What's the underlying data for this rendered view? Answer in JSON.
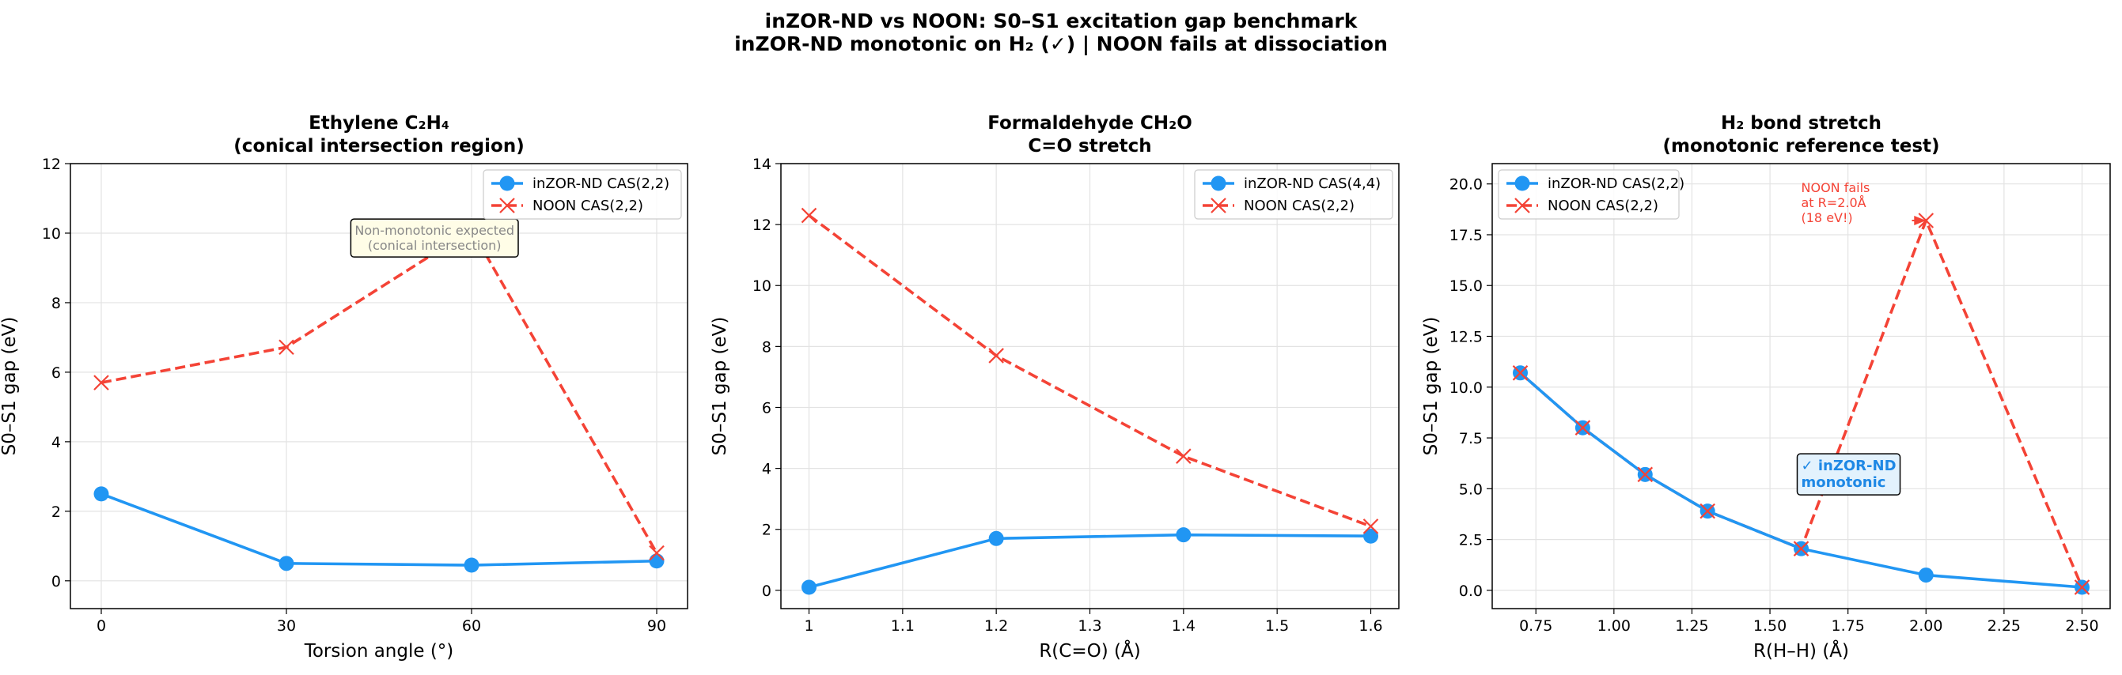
{
  "figure": {
    "suptitle_line1": "inZOR-ND vs NOON: S0–S1 excitation gap benchmark",
    "suptitle_line2": "inZOR-ND monotonic on H₂ (✓) | NOON fails at dissociation"
  },
  "chart_data": [
    {
      "type": "line",
      "title_line1": "Ethylene C₂H₄",
      "title_line2": "(conical intersection region)",
      "xlabel": "Torsion angle (°)",
      "ylabel": "S0–S1 gap (eV)",
      "xlim": [
        -5,
        95
      ],
      "ylim": [
        -0.8,
        12
      ],
      "xticks": [
        0,
        30,
        60,
        90
      ],
      "yticks": [
        0,
        2,
        4,
        6,
        8,
        10,
        12
      ],
      "grid": true,
      "legend": "top-right",
      "series": [
        {
          "name": "inZOR-ND CAS(2,2)",
          "color": "#2196F3",
          "marker": "circle",
          "linestyle": "solid",
          "x": [
            0,
            30,
            60,
            90
          ],
          "y": [
            2.5,
            0.5,
            0.45,
            0.57
          ]
        },
        {
          "name": "NOON CAS(2,2)",
          "color": "#F44336",
          "marker": "x",
          "linestyle": "dashed",
          "x": [
            0,
            30,
            60,
            90
          ],
          "y": [
            5.7,
            6.72,
            10.1,
            0.8
          ]
        }
      ],
      "annotations": [
        {
          "text_line1": "Non-monotonic expected",
          "text_line2": "(conical intersection)",
          "x": 54,
          "y": 9.95,
          "arrow_to": [
            60,
            10.1
          ],
          "box_fill": "#FFFDE7",
          "color": "#888888"
        }
      ]
    },
    {
      "type": "line",
      "title_line1": "Formaldehyde CH₂O",
      "title_line2": "C=O stretch",
      "xlabel": "R(C=O) (Å)",
      "ylabel": "S0–S1 gap (eV)",
      "xlim": [
        0.97,
        1.63
      ],
      "ylim": [
        -0.6,
        14
      ],
      "xticks": [
        1.0,
        1.1,
        1.2,
        1.3,
        1.4,
        1.5,
        1.6
      ],
      "yticks": [
        0,
        2,
        4,
        6,
        8,
        10,
        12,
        14
      ],
      "grid": true,
      "legend": "top-right",
      "series": [
        {
          "name": "inZOR-ND CAS(4,4)",
          "color": "#2196F3",
          "marker": "circle",
          "linestyle": "solid",
          "x": [
            1.0,
            1.2,
            1.4,
            1.6
          ],
          "y": [
            0.1,
            1.7,
            1.82,
            1.78
          ]
        },
        {
          "name": "NOON CAS(2,2)",
          "color": "#F44336",
          "marker": "x",
          "linestyle": "dashed",
          "x": [
            1.0,
            1.2,
            1.4,
            1.6
          ],
          "y": [
            12.3,
            7.7,
            4.4,
            2.1
          ]
        }
      ],
      "annotations": []
    },
    {
      "type": "line",
      "title_line1": "H₂ bond stretch",
      "title_line2": "(monotonic reference test)",
      "xlabel": "R(H–H) (Å)",
      "ylabel": "S0–S1 gap (eV)",
      "xlim": [
        0.61,
        2.59
      ],
      "ylim": [
        -0.9,
        21
      ],
      "xticks": [
        0.75,
        1.0,
        1.25,
        1.5,
        1.75,
        2.0,
        2.25,
        2.5
      ],
      "xticklabels": [
        "0.75",
        "1.00",
        "1.25",
        "1.50",
        "1.75",
        "2.00",
        "2.25",
        "2.50"
      ],
      "yticks": [
        0,
        2.5,
        5,
        7.5,
        10,
        12.5,
        15,
        17.5,
        20
      ],
      "yticklabels": [
        "0.0",
        "2.5",
        "5.0",
        "7.5",
        "10.0",
        "12.5",
        "15.0",
        "17.5",
        "20.0"
      ],
      "grid": true,
      "legend": "top-left",
      "series": [
        {
          "name": "inZOR-ND CAS(2,2)",
          "color": "#2196F3",
          "marker": "circle",
          "linestyle": "solid",
          "x": [
            0.7,
            0.9,
            1.1,
            1.3,
            1.6,
            2.0,
            2.5
          ],
          "y": [
            10.7,
            8.0,
            5.7,
            3.9,
            2.05,
            0.75,
            0.15
          ]
        },
        {
          "name": "NOON CAS(2,2)",
          "color": "#F44336",
          "marker": "x",
          "linestyle": "dashed",
          "x": [
            0.7,
            0.9,
            1.1,
            1.3,
            1.6,
            2.0,
            2.5
          ],
          "y": [
            10.7,
            8.0,
            5.7,
            3.9,
            2.05,
            18.2,
            0.15
          ]
        }
      ],
      "annotations": [
        {
          "text_line1": "NOON fails",
          "text_line2": "at R=2.0Å",
          "text_line3": "(18 eV!)",
          "x": 1.6,
          "y": 19.6,
          "arrow_to": [
            2.0,
            18.2
          ],
          "color": "#F44336"
        },
        {
          "text_line1": "✓ inZOR-ND",
          "text_line2": "monotonic",
          "x": 1.6,
          "y": 5.9,
          "box_fill": "#E3F2FD",
          "color": "#1E88E5"
        }
      ]
    }
  ]
}
